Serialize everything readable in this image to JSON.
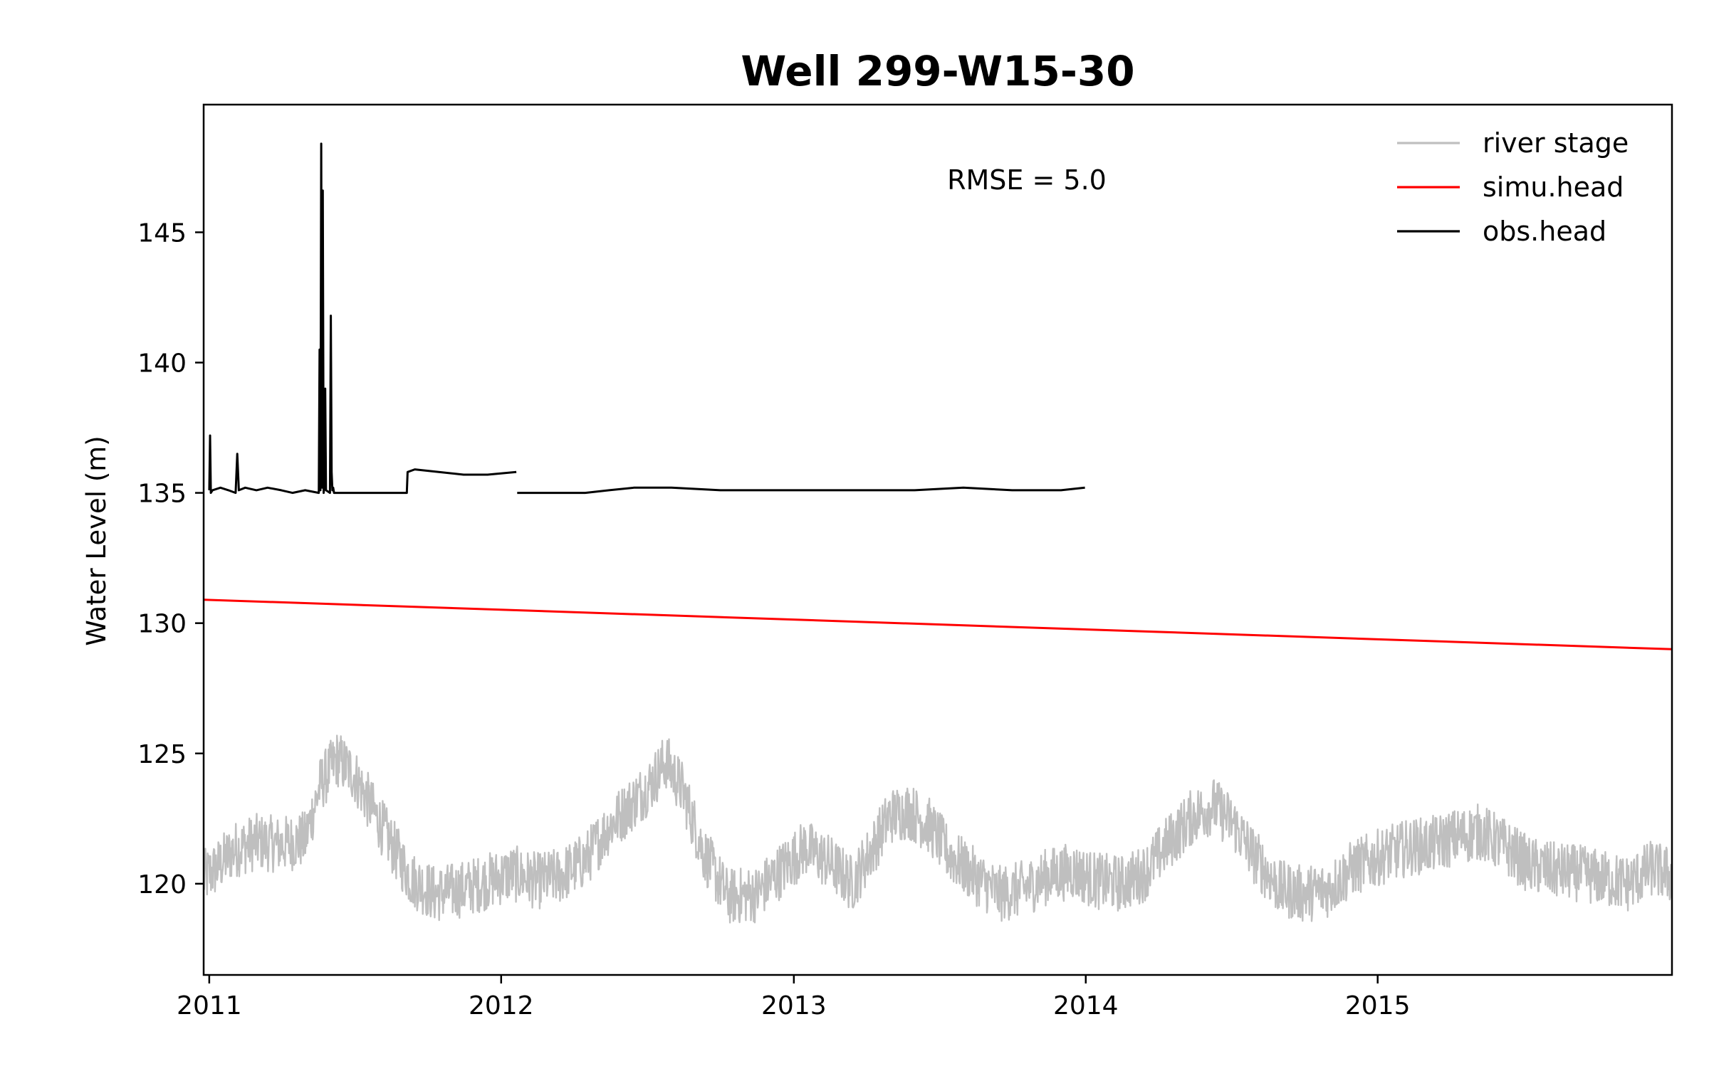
{
  "chart_data": {
    "type": "line",
    "title": "Well 299-W15-30",
    "xlabel": "",
    "ylabel": "Water Level (m)",
    "xlim": [
      "2010-12-25",
      "2016-01-04"
    ],
    "ylim": [
      116.5,
      149.9
    ],
    "x_ticks": [
      "2011",
      "2012",
      "2013",
      "2014",
      "2015"
    ],
    "x_tick_dates": [
      "2011-01-01",
      "2012-01-01",
      "2013-01-01",
      "2014-01-01",
      "2015-01-01"
    ],
    "y_ticks": [
      120,
      125,
      130,
      135,
      140,
      145
    ],
    "grid": false,
    "legend_position": "top-right",
    "annotation": "RMSE = 5.0",
    "series": [
      {
        "name": "river stage",
        "color": "#bfbfbf",
        "x": [
          "2010-12-25",
          "2011-01-10",
          "2011-02-01",
          "2011-03-01",
          "2011-04-01",
          "2011-05-01",
          "2011-05-20",
          "2011-06-10",
          "2011-07-01",
          "2011-07-25",
          "2011-08-15",
          "2011-09-10",
          "2011-10-10",
          "2011-11-15",
          "2011-12-15",
          "2012-01-15",
          "2012-02-15",
          "2012-03-15",
          "2012-04-15",
          "2012-05-15",
          "2012-06-10",
          "2012-07-05",
          "2012-07-25",
          "2012-08-15",
          "2012-09-10",
          "2012-10-10",
          "2012-11-15",
          "2012-12-15",
          "2013-01-15",
          "2013-02-15",
          "2013-03-15",
          "2013-04-10",
          "2013-05-01",
          "2013-05-25",
          "2013-06-20",
          "2013-07-15",
          "2013-08-15",
          "2013-09-15",
          "2013-10-15",
          "2013-11-15",
          "2013-12-15",
          "2014-01-15",
          "2014-02-15",
          "2014-03-15",
          "2014-04-15",
          "2014-05-15",
          "2014-06-10",
          "2014-07-05",
          "2014-08-01",
          "2014-09-01",
          "2014-10-01",
          "2014-11-01",
          "2014-12-01",
          "2015-01-10",
          "2015-02-10",
          "2015-03-10",
          "2015-04-10",
          "2015-05-10",
          "2015-06-10",
          "2015-07-10",
          "2015-08-10",
          "2015-09-10",
          "2015-10-10",
          "2015-11-10",
          "2015-12-10",
          "2016-01-04"
        ],
        "y": [
          120.2,
          120.6,
          121.3,
          121.6,
          121.5,
          121.7,
          123.8,
          124.8,
          124.2,
          122.8,
          121.6,
          120.2,
          119.6,
          119.8,
          120.1,
          120.4,
          120.1,
          120.3,
          120.9,
          122.2,
          123.0,
          123.8,
          124.7,
          123.6,
          121.2,
          119.5,
          119.6,
          120.5,
          121.4,
          120.8,
          120.0,
          121.4,
          122.6,
          122.8,
          122.2,
          121.1,
          120.3,
          119.6,
          119.8,
          120.3,
          120.5,
          120.1,
          120.0,
          120.4,
          121.6,
          122.6,
          123.0,
          122.3,
          121.0,
          119.8,
          119.6,
          119.8,
          120.6,
          121.1,
          121.4,
          121.5,
          121.8,
          122.0,
          121.4,
          120.7,
          120.5,
          120.4,
          120.2,
          120.0,
          120.6,
          120.3
        ]
      },
      {
        "name": "simu.head",
        "color": "#ff0000",
        "x": [
          "2010-12-25",
          "2016-01-04"
        ],
        "y": [
          130.9,
          129.0
        ]
      },
      {
        "name": "obs.head",
        "color": "#000000",
        "x": [
          "2011-01-01",
          "2011-01-02",
          "2011-01-03",
          "2011-01-05",
          "2011-01-15",
          "2011-01-25",
          "2011-02-03",
          "2011-02-05",
          "2011-02-07",
          "2011-02-15",
          "2011-03-01",
          "2011-03-15",
          "2011-04-01",
          "2011-04-15",
          "2011-05-01",
          "2011-05-18",
          "2011-05-19",
          "2011-05-20",
          "2011-05-21",
          "2011-05-22",
          "2011-05-23",
          "2011-05-24",
          "2011-05-25",
          "2011-05-26",
          "2011-05-27",
          "2011-06-01",
          "2011-06-02",
          "2011-06-03",
          "2011-06-04",
          "2011-06-05",
          "2011-06-06",
          "2011-06-15",
          "2011-07-01",
          "2011-08-01",
          "2011-09-05",
          "2011-09-06",
          "2011-09-15",
          "2011-10-15",
          "2011-11-15",
          "2011-12-15",
          "2012-01-20",
          null,
          "2012-01-21",
          "2012-02-15",
          "2012-03-15",
          "2012-04-15",
          "2012-05-15",
          "2012-06-15",
          "2012-08-01",
          "2012-10-01",
          "2012-12-01",
          "2013-02-01",
          "2013-04-01",
          "2013-06-01",
          "2013-08-01",
          "2013-10-01",
          "2013-12-01",
          "2013-12-31"
        ],
        "y": [
          135.1,
          137.2,
          135.0,
          135.1,
          135.2,
          135.1,
          135.0,
          136.5,
          135.1,
          135.2,
          135.1,
          135.2,
          135.1,
          135.0,
          135.1,
          135.0,
          140.5,
          135.1,
          148.4,
          135.2,
          146.6,
          135.0,
          135.3,
          139.0,
          135.1,
          135.0,
          141.8,
          135.8,
          135.1,
          135.2,
          135.0,
          135.0,
          135.0,
          135.0,
          135.0,
          135.8,
          135.9,
          135.8,
          135.7,
          135.7,
          135.8,
          null,
          135.0,
          135.0,
          135.0,
          135.0,
          135.1,
          135.2,
          135.2,
          135.1,
          135.1,
          135.1,
          135.1,
          135.1,
          135.2,
          135.1,
          135.1,
          135.2
        ]
      }
    ]
  }
}
